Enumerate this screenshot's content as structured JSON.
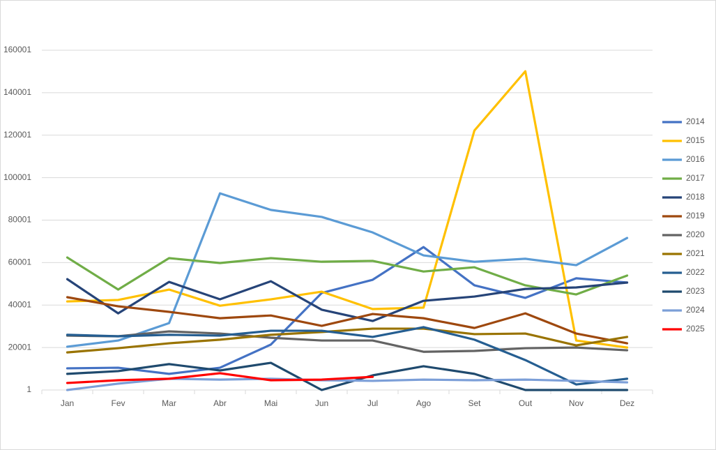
{
  "chart_data": {
    "type": "line",
    "categories": [
      "Jan",
      "Fev",
      "Mar",
      "Abr",
      "Mai",
      "Jun",
      "Jul",
      "Ago",
      "Set",
      "Out",
      "Nov",
      "Dez"
    ],
    "ylim": [
      1,
      160001
    ],
    "yticks": [
      1,
      20001,
      40001,
      60001,
      80001,
      100001,
      120001,
      140001,
      160001
    ],
    "grid": true,
    "legend": "right",
    "series": [
      {
        "name": "2014",
        "color": "#4472c4",
        "values": [
          10200,
          10500,
          7600,
          10500,
          21400,
          45700,
          51900,
          67300,
          49300,
          43400,
          52600,
          50600
        ]
      },
      {
        "name": "2015",
        "color": "#ffc000",
        "values": [
          41700,
          42400,
          47300,
          39700,
          42700,
          46300,
          38100,
          38800,
          122200,
          150100,
          23300,
          20000
        ]
      },
      {
        "name": "2016",
        "color": "#5b9bd5",
        "values": [
          20400,
          23300,
          31500,
          92600,
          84800,
          81500,
          74200,
          63400,
          60400,
          61800,
          58800,
          71600
        ]
      },
      {
        "name": "2017",
        "color": "#70ad47",
        "values": [
          62400,
          47300,
          62100,
          59800,
          62100,
          60400,
          60800,
          55800,
          57800,
          49300,
          45000,
          53900
        ]
      },
      {
        "name": "2018",
        "color": "#264478",
        "values": [
          52200,
          36100,
          50900,
          42700,
          51200,
          37800,
          32500,
          42000,
          44000,
          47600,
          48300,
          50600
        ]
      },
      {
        "name": "2019",
        "color": "#9e480e",
        "values": [
          43700,
          39400,
          36800,
          33800,
          35100,
          30200,
          35800,
          33800,
          29200,
          36100,
          26600,
          22000
        ]
      },
      {
        "name": "2020",
        "color": "#636363",
        "values": [
          25600,
          25300,
          27600,
          26600,
          24600,
          23300,
          23300,
          18000,
          18400,
          19700,
          20000,
          18700
        ]
      },
      {
        "name": "2021",
        "color": "#997300",
        "values": [
          17700,
          19700,
          22000,
          23700,
          26000,
          27300,
          28900,
          28900,
          26300,
          26600,
          21000,
          25000
        ]
      },
      {
        "name": "2022",
        "color": "#255e91",
        "values": [
          26000,
          25300,
          26000,
          25600,
          27900,
          27900,
          25000,
          29600,
          23700,
          14100,
          2600,
          5300
        ]
      },
      {
        "name": "2023",
        "color": "#1f4a6e",
        "values": [
          7600,
          8900,
          12200,
          9200,
          12800,
          1,
          6900,
          11200,
          7600,
          1,
          1,
          1
        ]
      },
      {
        "name": "2024",
        "color": "#7c9fd8",
        "values": [
          1,
          3000,
          5300,
          4900,
          5300,
          4600,
          4300,
          4900,
          4600,
          4900,
          4300,
          3600
        ]
      },
      {
        "name": "2025",
        "color": "#ff0000",
        "values": [
          3300,
          4600,
          5300,
          7900,
          4600,
          4900,
          6200,
          null,
          null,
          null,
          null,
          null
        ]
      }
    ]
  }
}
